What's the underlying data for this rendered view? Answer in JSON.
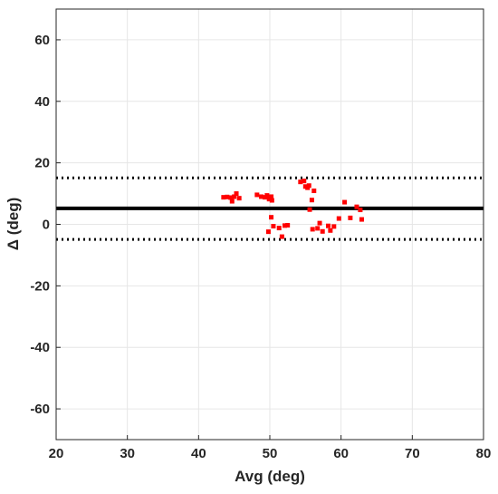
{
  "chart_data": {
    "type": "scatter",
    "title": "",
    "xlabel": "Avg (deg)",
    "ylabel": "Δ (deg)",
    "xlim": [
      20,
      80
    ],
    "ylim": [
      -70,
      70
    ],
    "xticks": [
      20,
      30,
      40,
      50,
      60,
      70,
      80
    ],
    "yticks": [
      -60,
      -40,
      -20,
      0,
      20,
      40,
      60
    ],
    "grid": true,
    "reference_lines": [
      {
        "kind": "mean",
        "y": 5.2,
        "style": "solid",
        "color": "#000000"
      },
      {
        "kind": "upper_limit",
        "y": 15.1,
        "style": "dotted",
        "color": "#000000"
      },
      {
        "kind": "lower_limit",
        "y": -4.9,
        "style": "dotted",
        "color": "#000000"
      }
    ],
    "series": [
      {
        "color": "#ff0000",
        "marker": "square",
        "points": [
          [
            43.5,
            8.8
          ],
          [
            44.0,
            8.9
          ],
          [
            44.5,
            8.7
          ],
          [
            44.7,
            7.5
          ],
          [
            45.0,
            9.0
          ],
          [
            45.3,
            10.0
          ],
          [
            45.7,
            8.5
          ],
          [
            48.2,
            9.6
          ],
          [
            48.8,
            9.0
          ],
          [
            49.3,
            8.8
          ],
          [
            49.6,
            9.4
          ],
          [
            49.9,
            8.2
          ],
          [
            50.2,
            9.0
          ],
          [
            50.3,
            7.8
          ],
          [
            49.8,
            -2.4
          ],
          [
            50.2,
            2.3
          ],
          [
            50.5,
            -0.6
          ],
          [
            51.3,
            -1.2
          ],
          [
            51.7,
            -4.0
          ],
          [
            52.1,
            -0.4
          ],
          [
            52.5,
            -0.3
          ],
          [
            54.3,
            13.8
          ],
          [
            54.8,
            14.1
          ],
          [
            55.0,
            12.3
          ],
          [
            55.3,
            11.9
          ],
          [
            55.5,
            12.6
          ],
          [
            55.6,
            4.8
          ],
          [
            55.9,
            7.9
          ],
          [
            56.2,
            10.9
          ],
          [
            56.0,
            -1.6
          ],
          [
            56.7,
            -1.3
          ],
          [
            57.0,
            0.4
          ],
          [
            57.4,
            -2.3
          ],
          [
            58.2,
            -0.5
          ],
          [
            58.5,
            -2.0
          ],
          [
            59.0,
            -0.7
          ],
          [
            59.7,
            1.9
          ],
          [
            60.5,
            7.2
          ],
          [
            61.3,
            2.1
          ],
          [
            62.2,
            5.7
          ],
          [
            62.7,
            4.7
          ],
          [
            62.9,
            1.6
          ]
        ]
      }
    ]
  }
}
